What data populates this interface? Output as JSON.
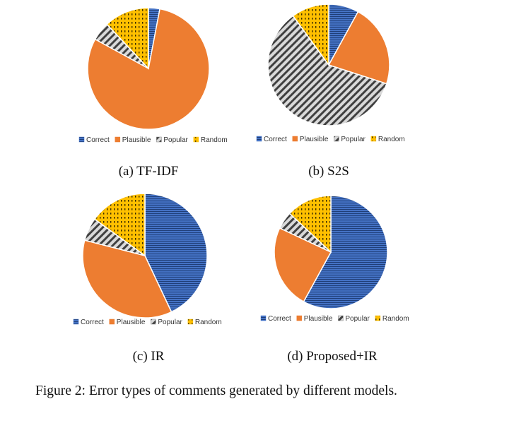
{
  "colors": {
    "Correct": "#4472C4",
    "Plausible": "#ED7D31",
    "Popular": "#7F7F7F",
    "Random": "#FFC000"
  },
  "chart_data": [
    {
      "type": "pie",
      "subtitle": "(a) TF-IDF",
      "categories": [
        "Correct",
        "Plausible",
        "Popular",
        "Random"
      ],
      "values": [
        3,
        80,
        5,
        12
      ],
      "legend": "bottom"
    },
    {
      "type": "pie",
      "subtitle": "(b) S2S",
      "categories": [
        "Correct",
        "Plausible",
        "Popular",
        "Random"
      ],
      "values": [
        8,
        22,
        60,
        10
      ],
      "legend": "bottom"
    },
    {
      "type": "pie",
      "subtitle": "(c) IR",
      "categories": [
        "Correct",
        "Plausible",
        "Popular",
        "Random"
      ],
      "values": [
        43,
        36,
        6,
        15
      ],
      "legend": "bottom"
    },
    {
      "type": "pie",
      "subtitle": "(d) Proposed+IR",
      "categories": [
        "Correct",
        "Plausible",
        "Popular",
        "Random"
      ],
      "values": [
        58,
        24,
        5,
        13
      ],
      "legend": "bottom"
    }
  ],
  "caption": "Figure 2: Error types of comments generated by different models."
}
